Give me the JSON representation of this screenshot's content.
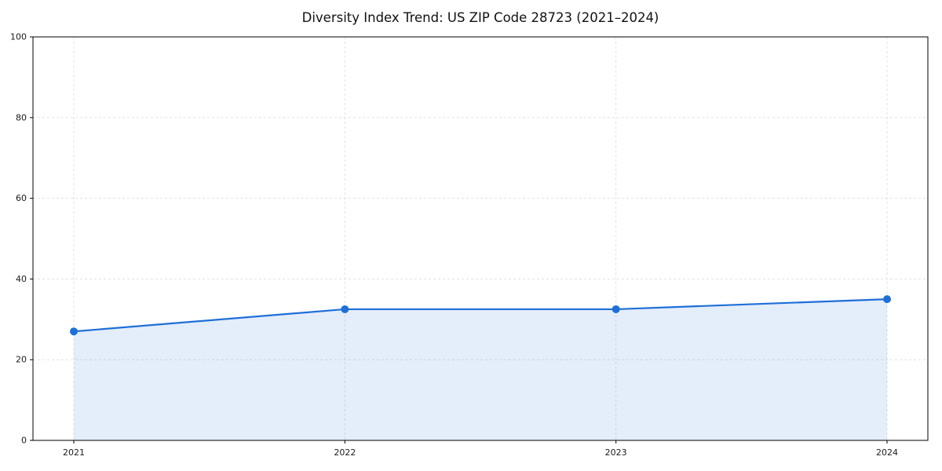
{
  "chart_data": {
    "type": "area",
    "title": "Diversity Index Trend: US ZIP Code 28723 (2021–2024)",
    "categories": [
      "2021",
      "2022",
      "2023",
      "2024"
    ],
    "series": [
      {
        "name": "Diversity Index",
        "values": [
          27,
          32.5,
          32.5,
          35
        ]
      }
    ],
    "xlabel": "",
    "ylabel": "",
    "ylim": [
      0,
      100
    ],
    "yticks": [
      0,
      20,
      40,
      60,
      80,
      100
    ],
    "grid": true,
    "grid_style": "dashed",
    "legend": "none",
    "line_color": "#1f6fd8",
    "fill_opacity": 0.12,
    "grid_color": "#e1e1e1",
    "axis_color": "#000000",
    "background": "#ffffff"
  }
}
